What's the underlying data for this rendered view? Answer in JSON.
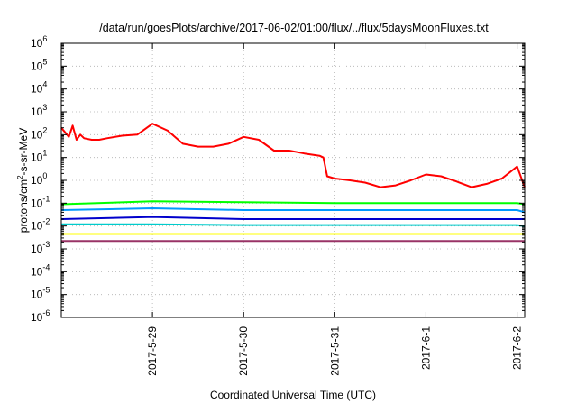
{
  "chart_data": {
    "type": "line",
    "title": "/data/run/goesPlots/archive/2017-06-02/01:00/flux/../flux/5daysMoonFluxes.txt",
    "xlabel": "Coordinated Universal Time (UTC)",
    "ylabel": "protons/cm²-s-sr-MeV",
    "ylabel_parts": {
      "before": "protons/cm",
      "sup": "2",
      "after": "-s-sr-MeV"
    },
    "y_scale": "log",
    "ylim_exponents": [
      -6,
      6
    ],
    "y_ticks": [
      {
        "base": "10",
        "exp": "6"
      },
      {
        "base": "10",
        "exp": "5"
      },
      {
        "base": "10",
        "exp": "4"
      },
      {
        "base": "10",
        "exp": "3"
      },
      {
        "base": "10",
        "exp": "2"
      },
      {
        "base": "10",
        "exp": "1"
      },
      {
        "base": "10",
        "exp": "0"
      },
      {
        "base": "10",
        "exp": "-1"
      },
      {
        "base": "10",
        "exp": "-2"
      },
      {
        "base": "10",
        "exp": "-3"
      },
      {
        "base": "10",
        "exp": "-4"
      },
      {
        "base": "10",
        "exp": "-5"
      },
      {
        "base": "10",
        "exp": "-6"
      }
    ],
    "xlim_days": [
      "2017-05-28T00:00",
      "2017-06-02T02:00"
    ],
    "x_ticks": [
      "2017-5-29",
      "2017-5-30",
      "2017-5-31",
      "2017-6-1",
      "2017-6-2"
    ],
    "x_tick_dates": [
      "2017-05-29T00:00",
      "2017-05-30T00:00",
      "2017-05-31T00:00",
      "2017-06-01T00:00",
      "2017-06-02T00:00"
    ],
    "grid": true,
    "legend": "none",
    "series": [
      {
        "color": "#ff0000",
        "x": [
          "2017-05-28T00:00",
          "2017-05-28T02:00",
          "2017-05-28T03:00",
          "2017-05-28T04:00",
          "2017-05-28T05:00",
          "2017-05-28T06:00",
          "2017-05-28T08:00",
          "2017-05-28T10:00",
          "2017-05-28T12:00",
          "2017-05-28T16:00",
          "2017-05-28T20:00",
          "2017-05-29T00:00",
          "2017-05-29T04:00",
          "2017-05-29T08:00",
          "2017-05-29T12:00",
          "2017-05-29T16:00",
          "2017-05-29T20:00",
          "2017-05-30T00:00",
          "2017-05-30T04:00",
          "2017-05-30T08:00",
          "2017-05-30T12:00",
          "2017-05-30T16:00",
          "2017-05-30T20:00",
          "2017-05-30T21:00",
          "2017-05-30T22:00",
          "2017-05-31T00:00",
          "2017-05-31T04:00",
          "2017-05-31T08:00",
          "2017-05-31T12:00",
          "2017-05-31T16:00",
          "2017-05-31T20:00",
          "2017-06-01T00:00",
          "2017-06-01T04:00",
          "2017-06-01T08:00",
          "2017-06-01T12:00",
          "2017-06-01T16:00",
          "2017-06-01T20:00",
          "2017-06-02T00:00",
          "2017-06-02T02:00"
        ],
        "y": [
          200,
          80,
          250,
          60,
          100,
          70,
          60,
          60,
          70,
          90,
          100,
          300,
          150,
          40,
          30,
          30,
          40,
          80,
          60,
          20,
          20,
          15,
          12,
          10,
          1.5,
          1.2,
          1.0,
          0.8,
          0.5,
          0.6,
          1.0,
          1.8,
          1.5,
          0.9,
          0.5,
          0.7,
          1.2,
          4.0,
          0.5
        ]
      },
      {
        "color": "#00ff00",
        "x": [
          "2017-05-28T00:00",
          "2017-05-29T00:00",
          "2017-05-30T00:00",
          "2017-05-31T00:00",
          "2017-06-01T00:00",
          "2017-06-02T00:00",
          "2017-06-02T02:00"
        ],
        "y": [
          0.09,
          0.12,
          0.11,
          0.1,
          0.1,
          0.1,
          0.09
        ]
      },
      {
        "color": "#0099ff",
        "x": [
          "2017-05-28T00:00",
          "2017-05-29T00:00",
          "2017-05-30T00:00",
          "2017-05-31T00:00",
          "2017-06-01T00:00",
          "2017-06-02T00:00",
          "2017-06-02T02:00"
        ],
        "y": [
          0.05,
          0.06,
          0.05,
          0.05,
          0.05,
          0.05,
          0.04
        ]
      },
      {
        "color": "#0000cc",
        "x": [
          "2017-05-28T00:00",
          "2017-05-29T00:00",
          "2017-05-30T00:00",
          "2017-05-31T00:00",
          "2017-06-01T00:00",
          "2017-06-02T00:00",
          "2017-06-02T02:00"
        ],
        "y": [
          0.02,
          0.025,
          0.02,
          0.02,
          0.02,
          0.02,
          0.02
        ]
      },
      {
        "color": "#00cccc",
        "x": [
          "2017-05-28T00:00",
          "2017-05-29T00:00",
          "2017-05-30T00:00",
          "2017-05-31T00:00",
          "2017-06-01T00:00",
          "2017-06-02T00:00",
          "2017-06-02T02:00"
        ],
        "y": [
          0.012,
          0.012,
          0.011,
          0.011,
          0.011,
          0.011,
          0.01
        ]
      },
      {
        "color": "#ffff00",
        "x": [
          "2017-05-28T00:00",
          "2017-05-29T00:00",
          "2017-05-30T00:00",
          "2017-05-31T00:00",
          "2017-06-01T00:00",
          "2017-06-02T00:00",
          "2017-06-02T02:00"
        ],
        "y": [
          0.0045,
          0.0045,
          0.0045,
          0.0045,
          0.0045,
          0.0045,
          0.0045
        ]
      },
      {
        "color": "#993366",
        "x": [
          "2017-05-28T00:00",
          "2017-05-29T00:00",
          "2017-05-30T00:00",
          "2017-05-31T00:00",
          "2017-06-01T00:00",
          "2017-06-02T00:00",
          "2017-06-02T02:00"
        ],
        "y": [
          0.0022,
          0.0022,
          0.0022,
          0.0022,
          0.0022,
          0.0022,
          0.0022
        ]
      }
    ]
  }
}
